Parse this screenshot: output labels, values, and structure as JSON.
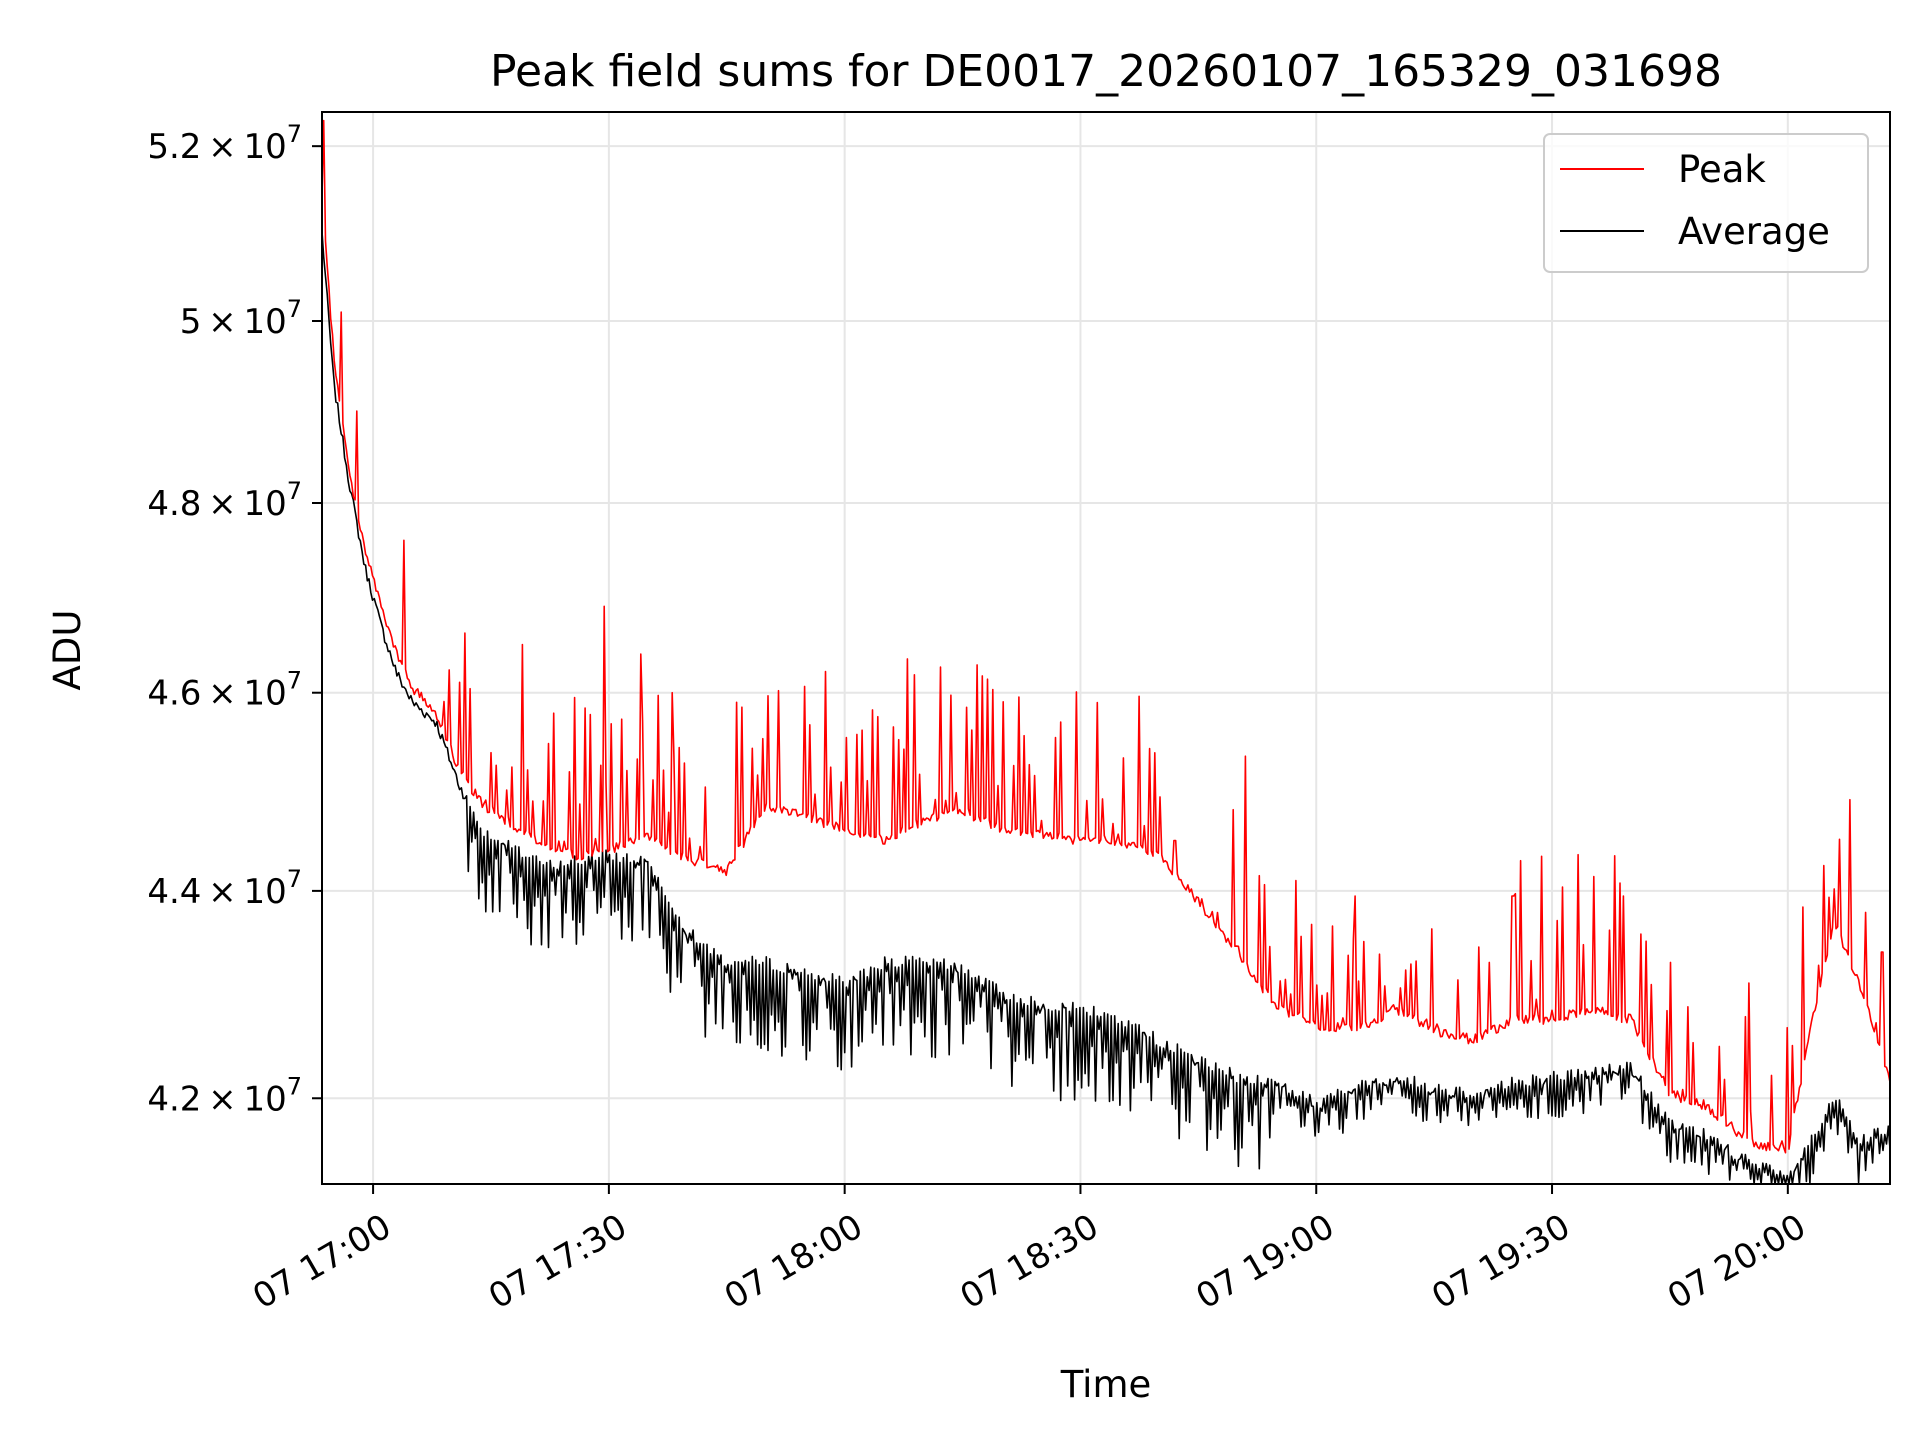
{
  "chart_data": {
    "type": "line",
    "title": "Peak field sums for DE0017_20260107_165329_031698",
    "xlabel": "Time",
    "ylabel": "ADU",
    "x_unit": "time (day 07, HH:MM)",
    "xlim": [
      "16:53:30",
      "20:13:00"
    ],
    "ylim": [
      41200000,
      52400000
    ],
    "yscale": "log",
    "grid": true,
    "legend_position": "upper right",
    "x_ticks": [
      "07 17:00",
      "07 17:30",
      "07 18:00",
      "07 18:30",
      "07 19:00",
      "07 19:30",
      "07 20:00"
    ],
    "y_ticks": [
      {
        "value": 42000000,
        "mantissa": "4.2",
        "exp": "7"
      },
      {
        "value": 44000000,
        "mantissa": "4.4",
        "exp": "7"
      },
      {
        "value": 46000000,
        "mantissa": "4.6",
        "exp": "7"
      },
      {
        "value": 48000000,
        "mantissa": "4.8",
        "exp": "7"
      },
      {
        "value": 50000000,
        "mantissa": "5",
        "exp": "7"
      },
      {
        "value": 52000000,
        "mantissa": "5.2",
        "exp": "7"
      }
    ],
    "x": [
      "16:53:30",
      "16:55",
      "16:57",
      "16:59",
      "17:01",
      "17:03",
      "17:05",
      "17:08",
      "17:11",
      "17:14",
      "17:18",
      "17:22",
      "17:26",
      "17:30",
      "17:35",
      "17:40",
      "17:45",
      "17:50",
      "17:55",
      "18:00",
      "18:05",
      "18:10",
      "18:15",
      "18:20",
      "18:25",
      "18:30",
      "18:35",
      "18:40",
      "18:45",
      "18:50",
      "18:55",
      "19:00",
      "19:05",
      "19:10",
      "19:15",
      "19:20",
      "19:25",
      "19:30",
      "19:35",
      "19:40",
      "19:45",
      "19:50",
      "19:55",
      "20:00",
      "20:03",
      "20:06",
      "20:09",
      "20:13"
    ],
    "series": [
      {
        "name": "Peak",
        "color": "#ff0000",
        "values": [
          51400000,
          49600000,
          48300000,
          47500000,
          46900000,
          46400000,
          46050000,
          45800000,
          45200000,
          44850000,
          44650000,
          44450000,
          44350000,
          44400000,
          44550000,
          44300000,
          44200000,
          44850000,
          44750000,
          44600000,
          44500000,
          44700000,
          44800000,
          44600000,
          44550000,
          44500000,
          44500000,
          44350000,
          43900000,
          43400000,
          42850000,
          42700000,
          42650000,
          42850000,
          42650000,
          42550000,
          42750000,
          42750000,
          42850000,
          42750000,
          42050000,
          41900000,
          41600000,
          41500000,
          42700000,
          43700000,
          43100000,
          42200000
        ],
        "spikes": [
          {
            "x": "16:53:40",
            "value": 52300000
          },
          {
            "x": "16:56",
            "value": 50100000
          },
          {
            "x": "16:58",
            "value": 49000000
          },
          {
            "x": "17:04",
            "value": 47600000
          },
          {
            "x": "17:19",
            "value": 46500000
          },
          {
            "x": "17:29:30",
            "value": 46900000
          },
          {
            "x": "17:34",
            "value": 46400000
          },
          {
            "x": "17:38",
            "value": 46000000
          },
          {
            "x": "18:08",
            "value": 46350000
          },
          {
            "x": "18:25",
            "value": 44700000
          },
          {
            "x": "18:42",
            "value": 44500000
          },
          {
            "x": "18:51",
            "value": 45350000
          },
          {
            "x": "19:05",
            "value": 43950000
          },
          {
            "x": "19:25",
            "value": 43950000
          },
          {
            "x": "19:39",
            "value": 43950000
          },
          {
            "x": "19:45",
            "value": 43300000
          },
          {
            "x": "19:55",
            "value": 43100000
          },
          {
            "x": "20:04:30",
            "value": 44250000
          },
          {
            "x": "20:12",
            "value": 43400000
          }
        ]
      },
      {
        "name": "Average",
        "color": "#000000",
        "values": [
          51000000,
          49300000,
          48200000,
          47300000,
          46700000,
          46200000,
          45900000,
          45700000,
          45050000,
          44600000,
          44400000,
          44250000,
          44300000,
          44350000,
          44300000,
          43600000,
          43300000,
          43300000,
          43200000,
          43100000,
          43300000,
          43300000,
          43250000,
          43000000,
          42900000,
          42850000,
          42750000,
          42550000,
          42350000,
          42200000,
          42150000,
          41950000,
          42100000,
          42200000,
          42100000,
          42050000,
          42150000,
          42200000,
          42250000,
          42300000,
          41750000,
          41650000,
          41400000,
          41250000,
          41600000,
          42000000,
          41600000,
          41700000
        ]
      }
    ]
  }
}
